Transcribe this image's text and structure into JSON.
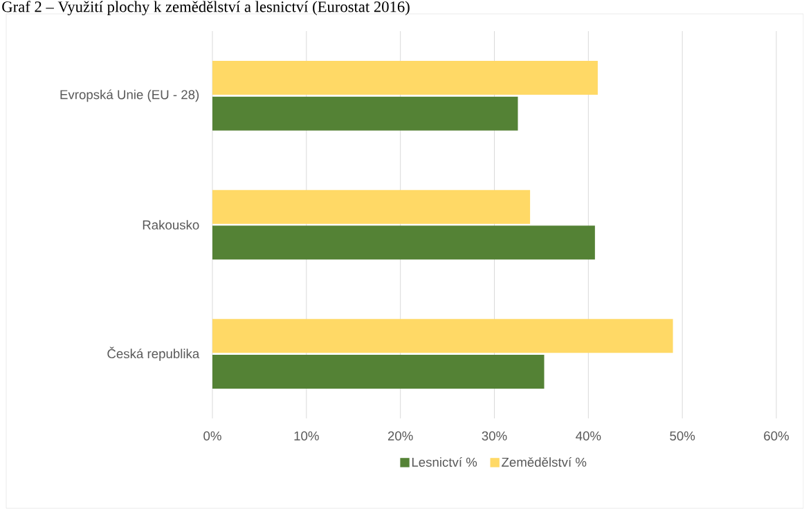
{
  "chart_data": {
    "type": "bar",
    "orientation": "horizontal",
    "title": "Graf 2 – Využití plochy k zemědělství a lesnictví (Eurostat 2016)",
    "categories": [
      "Evropská Unie (EU - 28)",
      "Rakousko",
      "Česká republika"
    ],
    "series": [
      {
        "name": "Lesnictví %",
        "color": "#548235",
        "values": [
          32.5,
          40.7,
          35.3
        ]
      },
      {
        "name": "Zemědělství %",
        "color": "#ffd966",
        "values": [
          41.0,
          33.8,
          49.0
        ]
      }
    ],
    "xlim": [
      0,
      60
    ],
    "xticks": [
      {
        "value": 0,
        "label": "0%"
      },
      {
        "value": 10,
        "label": "10%"
      },
      {
        "value": 20,
        "label": "20%"
      },
      {
        "value": 30,
        "label": "30%"
      },
      {
        "value": 40,
        "label": "40%"
      },
      {
        "value": 50,
        "label": "50%"
      },
      {
        "value": 60,
        "label": "60%"
      }
    ],
    "grid": "x",
    "legend": "bottom"
  }
}
